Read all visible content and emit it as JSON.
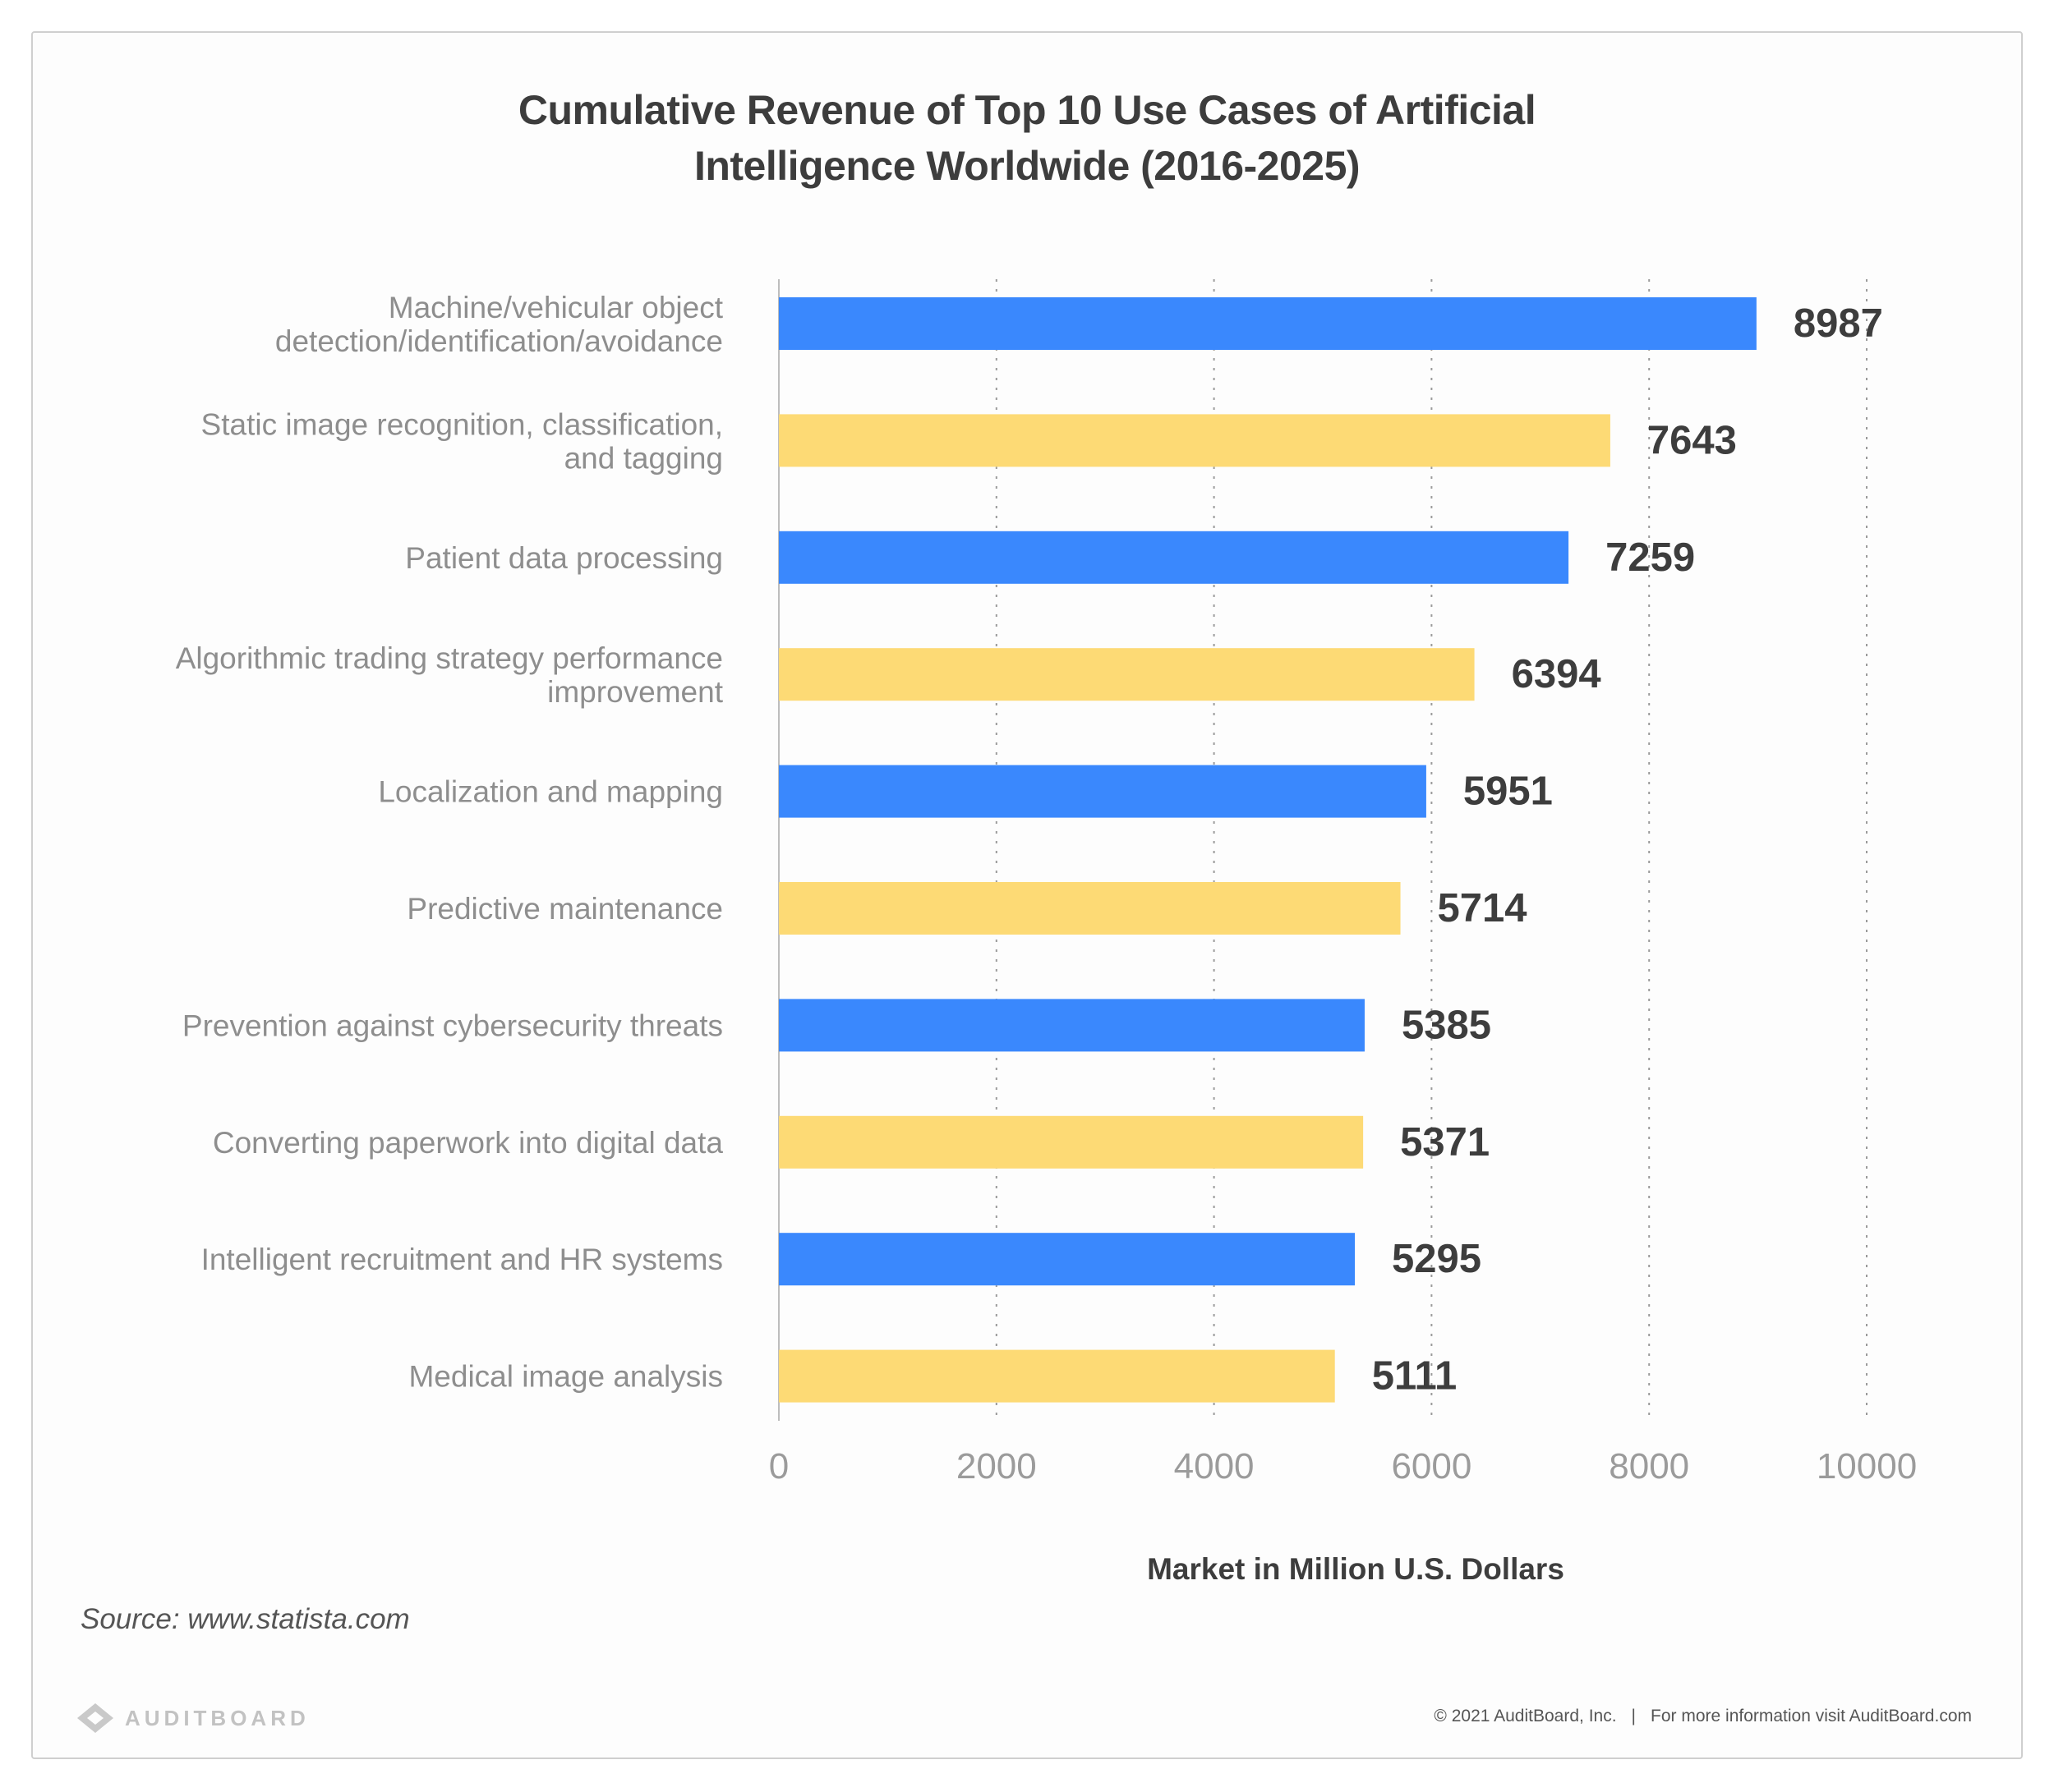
{
  "chart_data": {
    "type": "bar",
    "orientation": "horizontal",
    "title": "Cumulative Revenue of Top 10 Use Cases of Artificial\nIntelligence Worldwide (2016-2025)",
    "xlabel": "Market in Million U.S. Dollars",
    "ylabel": "",
    "xlim": [
      0,
      10000
    ],
    "xticks": [
      "0",
      "2000",
      "4000",
      "6000",
      "8000",
      "10000"
    ],
    "grid": "vertical dotted",
    "categories": [
      "Machine/vehicular object\ndetection/identification/avoidance",
      "Static image recognition, classification,\nand tagging",
      "Patient data processing",
      "Algorithmic trading strategy performance\nimprovement",
      "Localization and mapping",
      "Predictive maintenance",
      "Prevention against cybersecurity threats",
      "Converting paperwork into digital data",
      "Intelligent recruitment and HR systems",
      "Medical image analysis"
    ],
    "values": [
      8987,
      7643,
      7259,
      6394,
      5951,
      5714,
      5385,
      5371,
      5295,
      5111
    ],
    "colors": [
      "#3a88fd",
      "#fdda75"
    ]
  },
  "source": "Source: www.statista.com",
  "logo_text": "AUDITBOARD",
  "footer": {
    "copyright": "© 2021  AuditBoard, Inc.",
    "separator": "|",
    "info": "For more information visit AuditBoard.com"
  }
}
